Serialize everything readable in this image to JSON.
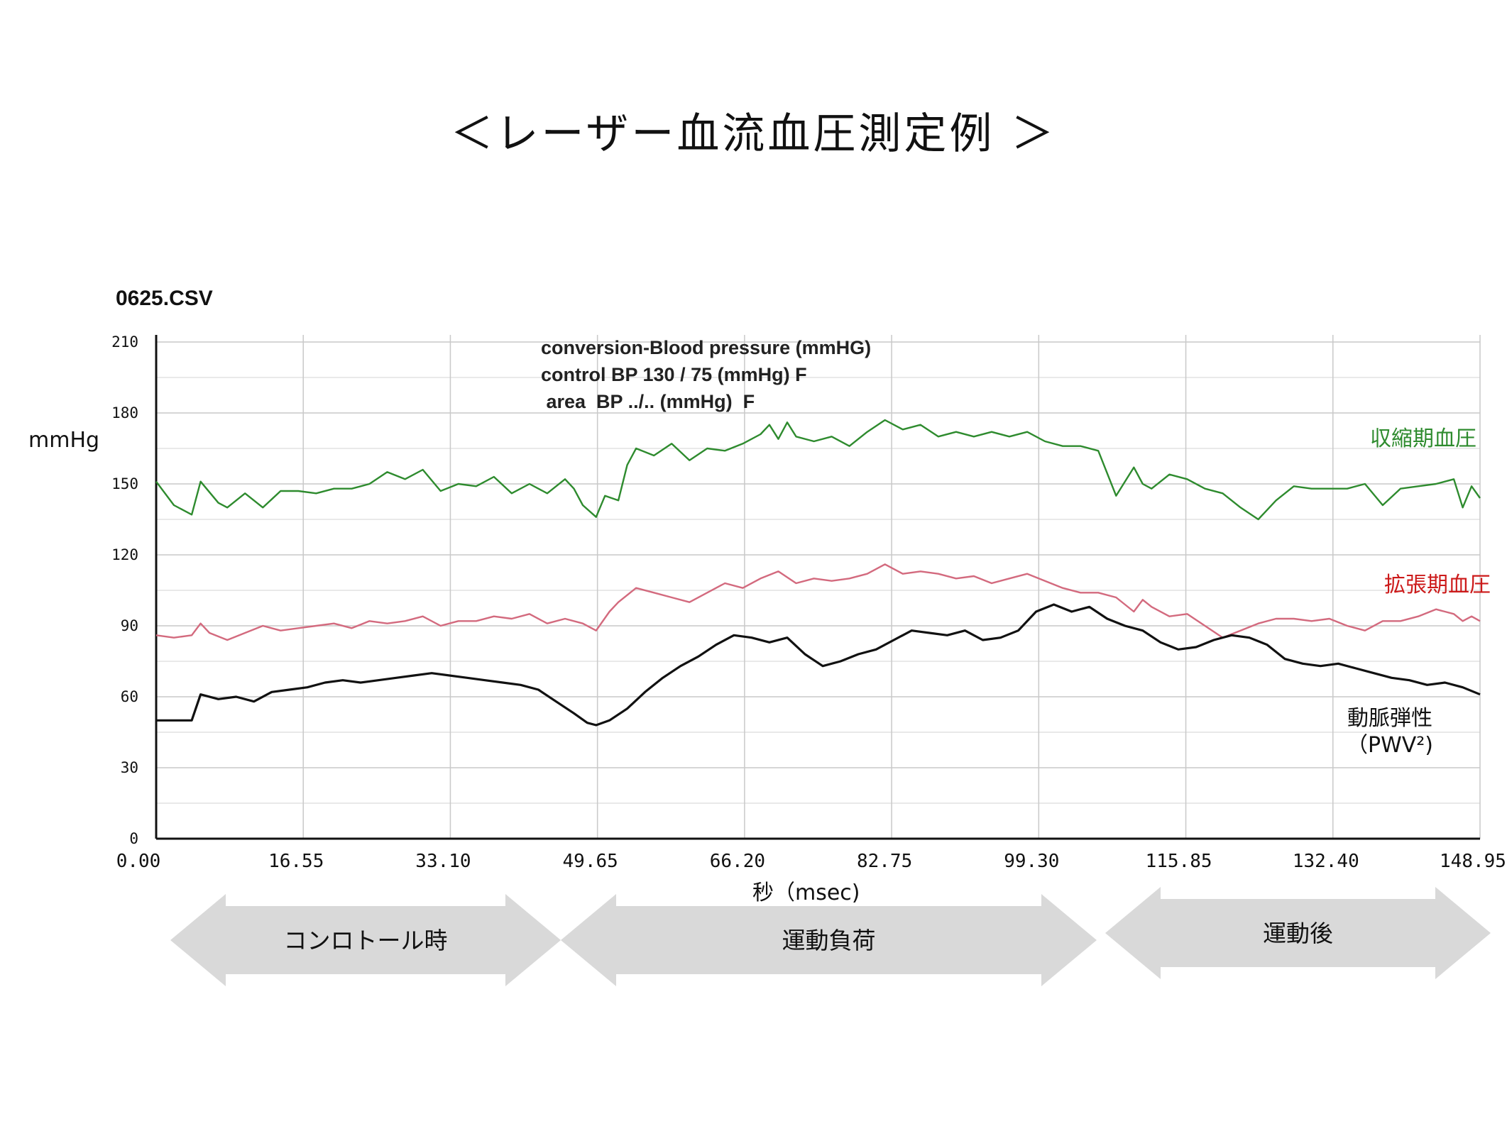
{
  "title": "＜レーザー血流血圧測定例 ＞",
  "chart_data": {
    "type": "line",
    "file_label": "0625.CSV",
    "ylabel": "mmHg",
    "xlabel": "秒（msec)",
    "ylim": [
      0,
      210
    ],
    "xlim": [
      0,
      148.95
    ],
    "y_ticks": [
      "0",
      "30",
      "60",
      "90",
      "120",
      "150",
      "180",
      "210"
    ],
    "x_ticks": [
      "0.00",
      "16.55",
      "33.10",
      "49.65",
      "66.20",
      "82.75",
      "99.30",
      "115.85",
      "132.40",
      "148.95"
    ],
    "x_tick_values": [
      0,
      16.55,
      33.1,
      49.65,
      66.2,
      82.75,
      99.3,
      115.85,
      132.4,
      148.95
    ],
    "grid": true,
    "annotations": [
      "conversion-Blood pressure (mmHG)",
      "control BP 130 / 75 (mmHg)  F",
      " area  BP ../.. (mmHg)  F"
    ],
    "series": [
      {
        "name": "収縮期血圧",
        "color": "#2e8b2e",
        "x": [
          0,
          2,
          4,
          5,
          7,
          8,
          10,
          12,
          14,
          16,
          18,
          20,
          22,
          24,
          26,
          28,
          30,
          32,
          34,
          36,
          38,
          40,
          42,
          44,
          46,
          47,
          48,
          49.5,
          50.5,
          52,
          53,
          54,
          56,
          58,
          60,
          62,
          64,
          66,
          68,
          69,
          70,
          71,
          72,
          74,
          76,
          78,
          80,
          82,
          84,
          86,
          88,
          90,
          92,
          94,
          96,
          98,
          100,
          102,
          104,
          106,
          108,
          110,
          111,
          112,
          114,
          116,
          118,
          120,
          122,
          124,
          126,
          128,
          130,
          132,
          134,
          136,
          138,
          140,
          142,
          144,
          146,
          147,
          148,
          148.95
        ],
        "values": [
          151,
          141,
          137,
          151,
          142,
          140,
          146,
          140,
          147,
          147,
          146,
          148,
          148,
          150,
          155,
          152,
          156,
          147,
          150,
          149,
          153,
          146,
          150,
          146,
          152,
          148,
          141,
          136,
          145,
          143,
          158,
          165,
          162,
          167,
          160,
          165,
          164,
          167,
          171,
          175,
          169,
          176,
          170,
          168,
          170,
          166,
          172,
          177,
          173,
          175,
          170,
          172,
          170,
          172,
          170,
          172,
          168,
          166,
          166,
          164,
          145,
          157,
          150,
          148,
          154,
          152,
          148,
          146,
          140,
          135,
          143,
          149,
          148,
          148,
          148,
          150,
          141,
          148,
          149,
          150,
          152,
          140,
          149,
          144
        ]
      },
      {
        "name": "拡張期血圧",
        "color": "#d36a7e",
        "x": [
          0,
          2,
          4,
          5,
          6,
          8,
          10,
          12,
          14,
          16,
          18,
          20,
          22,
          24,
          26,
          28,
          30,
          32,
          34,
          36,
          38,
          40,
          42,
          44,
          46,
          48,
          49.5,
          51,
          52,
          54,
          56,
          58,
          60,
          62,
          64,
          66,
          68,
          70,
          72,
          74,
          76,
          78,
          80,
          82,
          84,
          86,
          88,
          90,
          92,
          94,
          96,
          98,
          100,
          102,
          104,
          106,
          108,
          110,
          111,
          112,
          114,
          116,
          118,
          120,
          122,
          124,
          126,
          128,
          130,
          132,
          134,
          136,
          138,
          140,
          142,
          144,
          146,
          147,
          148,
          148.95
        ],
        "values": [
          86,
          85,
          86,
          91,
          87,
          84,
          87,
          90,
          88,
          89,
          90,
          91,
          89,
          92,
          91,
          92,
          94,
          90,
          92,
          92,
          94,
          93,
          95,
          91,
          93,
          91,
          88,
          96,
          100,
          106,
          104,
          102,
          100,
          104,
          108,
          106,
          110,
          113,
          108,
          110,
          109,
          110,
          112,
          116,
          112,
          113,
          112,
          110,
          111,
          108,
          110,
          112,
          109,
          106,
          104,
          104,
          102,
          96,
          101,
          98,
          94,
          95,
          90,
          85,
          88,
          91,
          93,
          93,
          92,
          93,
          90,
          88,
          92,
          92,
          94,
          97,
          95,
          92,
          94,
          92
        ]
      },
      {
        "name": "動脈弾性\n（PWV²)",
        "color": "#111111",
        "x": [
          0,
          3,
          4,
          5,
          7,
          9,
          11,
          13,
          15,
          17,
          19,
          21,
          23,
          25,
          27,
          29,
          31,
          33,
          35,
          37,
          39,
          41,
          43,
          45,
          47,
          48.5,
          49.5,
          51,
          53,
          55,
          57,
          59,
          61,
          63,
          65,
          67,
          69,
          71,
          73,
          75,
          77,
          79,
          81,
          83,
          85,
          87,
          89,
          91,
          93,
          95,
          97,
          99,
          101,
          103,
          105,
          107,
          109,
          111,
          113,
          115,
          117,
          119,
          121,
          123,
          125,
          127,
          129,
          131,
          133,
          135,
          137,
          139,
          141,
          143,
          145,
          147,
          148.95
        ],
        "values": [
          50,
          50,
          50,
          61,
          59,
          60,
          58,
          62,
          63,
          64,
          66,
          67,
          66,
          67,
          68,
          69,
          70,
          69,
          68,
          67,
          66,
          65,
          63,
          58,
          53,
          49,
          48,
          50,
          55,
          62,
          68,
          73,
          77,
          82,
          86,
          85,
          83,
          85,
          78,
          73,
          75,
          78,
          80,
          84,
          88,
          87,
          86,
          88,
          84,
          85,
          88,
          96,
          99,
          96,
          98,
          93,
          90,
          88,
          83,
          80,
          81,
          84,
          86,
          85,
          82,
          76,
          74,
          73,
          74,
          72,
          70,
          68,
          67,
          65,
          66,
          64,
          61
        ]
      }
    ]
  },
  "phases": [
    {
      "label": "コンロトール時"
    },
    {
      "label": "運動負荷"
    },
    {
      "label": "運動後"
    }
  ]
}
